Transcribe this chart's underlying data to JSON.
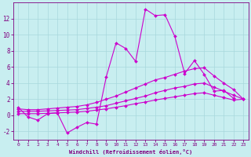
{
  "xlabel": "Windchill (Refroidissement éolien,°C)",
  "background_color": "#c8eef0",
  "grid_color": "#a8d8dc",
  "line_color": "#cc00cc",
  "xlim": [
    -0.5,
    23.5
  ],
  "ylim": [
    -3.0,
    14.0
  ],
  "xticks": [
    0,
    1,
    2,
    3,
    4,
    5,
    6,
    7,
    8,
    9,
    10,
    11,
    12,
    13,
    14,
    15,
    16,
    17,
    18,
    19,
    20,
    21,
    22,
    23
  ],
  "yticks": [
    -2,
    0,
    2,
    4,
    6,
    8,
    10,
    12
  ],
  "line1_x": [
    0,
    1,
    2,
    3,
    4,
    5,
    6,
    7,
    8,
    9,
    10,
    11,
    12,
    13,
    14,
    15,
    16,
    17,
    18,
    19,
    20,
    21,
    22
  ],
  "line1_y": [
    1.0,
    -0.2,
    -0.6,
    0.2,
    0.3,
    -2.2,
    -1.5,
    -0.9,
    -1.1,
    4.8,
    9.0,
    8.3,
    6.7,
    13.2,
    12.4,
    12.5,
    9.8,
    5.2,
    6.8,
    5.1,
    3.0,
    3.1,
    2.1
  ],
  "line2_x": [
    0,
    1,
    2,
    3,
    4,
    5,
    6,
    7,
    8,
    9,
    10,
    11,
    12,
    13,
    14,
    15,
    16,
    17,
    18,
    19,
    20,
    21,
    22,
    23
  ],
  "line2_y": [
    0.8,
    0.7,
    0.7,
    0.8,
    0.9,
    1.0,
    1.1,
    1.3,
    1.6,
    2.0,
    2.4,
    2.9,
    3.4,
    3.9,
    4.4,
    4.7,
    5.1,
    5.5,
    5.8,
    5.9,
    4.9,
    4.0,
    3.2,
    2.0
  ],
  "line3_x": [
    0,
    1,
    2,
    3,
    4,
    5,
    6,
    7,
    8,
    9,
    10,
    11,
    12,
    13,
    14,
    15,
    16,
    17,
    18,
    19,
    20,
    21,
    22,
    23
  ],
  "line3_y": [
    0.5,
    0.5,
    0.5,
    0.55,
    0.6,
    0.65,
    0.7,
    0.85,
    1.0,
    1.2,
    1.5,
    1.8,
    2.1,
    2.4,
    2.8,
    3.1,
    3.4,
    3.6,
    3.9,
    4.0,
    3.5,
    3.0,
    2.5,
    2.0
  ],
  "line4_x": [
    0,
    1,
    2,
    3,
    4,
    5,
    6,
    7,
    8,
    9,
    10,
    11,
    12,
    13,
    14,
    15,
    16,
    17,
    18,
    19,
    20,
    21,
    22,
    23
  ],
  "line4_y": [
    0.2,
    0.2,
    0.2,
    0.25,
    0.3,
    0.35,
    0.4,
    0.5,
    0.65,
    0.8,
    1.0,
    1.2,
    1.45,
    1.65,
    1.9,
    2.1,
    2.3,
    2.5,
    2.7,
    2.8,
    2.5,
    2.2,
    1.9,
    2.0
  ]
}
